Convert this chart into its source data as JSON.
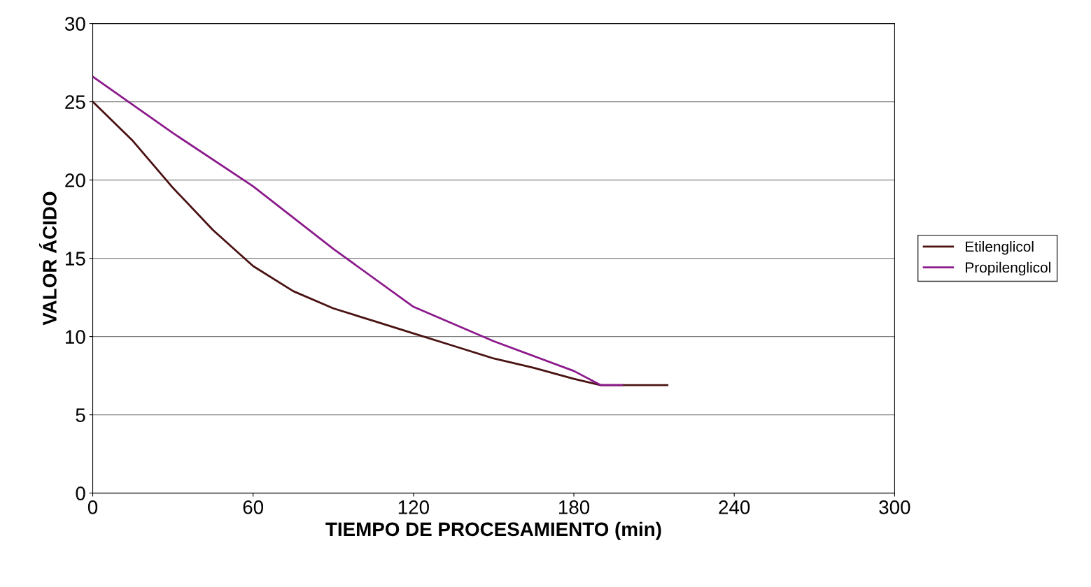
{
  "chart_data": {
    "type": "line",
    "xlabel": "TIEMPO DE PROCESAMIENTO (min)",
    "ylabel": "VALOR ÁCIDO",
    "xlim": [
      0,
      300
    ],
    "xticks": [
      0,
      60,
      120,
      180,
      240,
      300
    ],
    "ylim": [
      0,
      30
    ],
    "yticks": [
      0,
      5,
      10,
      15,
      20,
      25,
      30
    ],
    "grid": "y",
    "legend": "right",
    "marker": "none",
    "line_style": "solid",
    "series": [
      {
        "name": "Etilenglicol",
        "color": "#4a1212",
        "x": [
          0,
          15,
          30,
          45,
          60,
          75,
          90,
          105,
          120,
          135,
          150,
          165,
          180,
          190,
          200,
          215
        ],
        "values": [
          25,
          22.5,
          19.5,
          16.8,
          14.5,
          12.9,
          11.8,
          11.0,
          10.2,
          9.4,
          8.6,
          8.0,
          7.3,
          6.9,
          6.9,
          6.9
        ]
      },
      {
        "name": "Propilenglicol",
        "color": "#8b1a8b",
        "x": [
          0,
          30,
          60,
          90,
          120,
          150,
          180,
          190,
          198
        ],
        "values": [
          26.6,
          23,
          19.6,
          15.6,
          11.9,
          9.7,
          7.8,
          6.9,
          6.9
        ]
      }
    ]
  }
}
